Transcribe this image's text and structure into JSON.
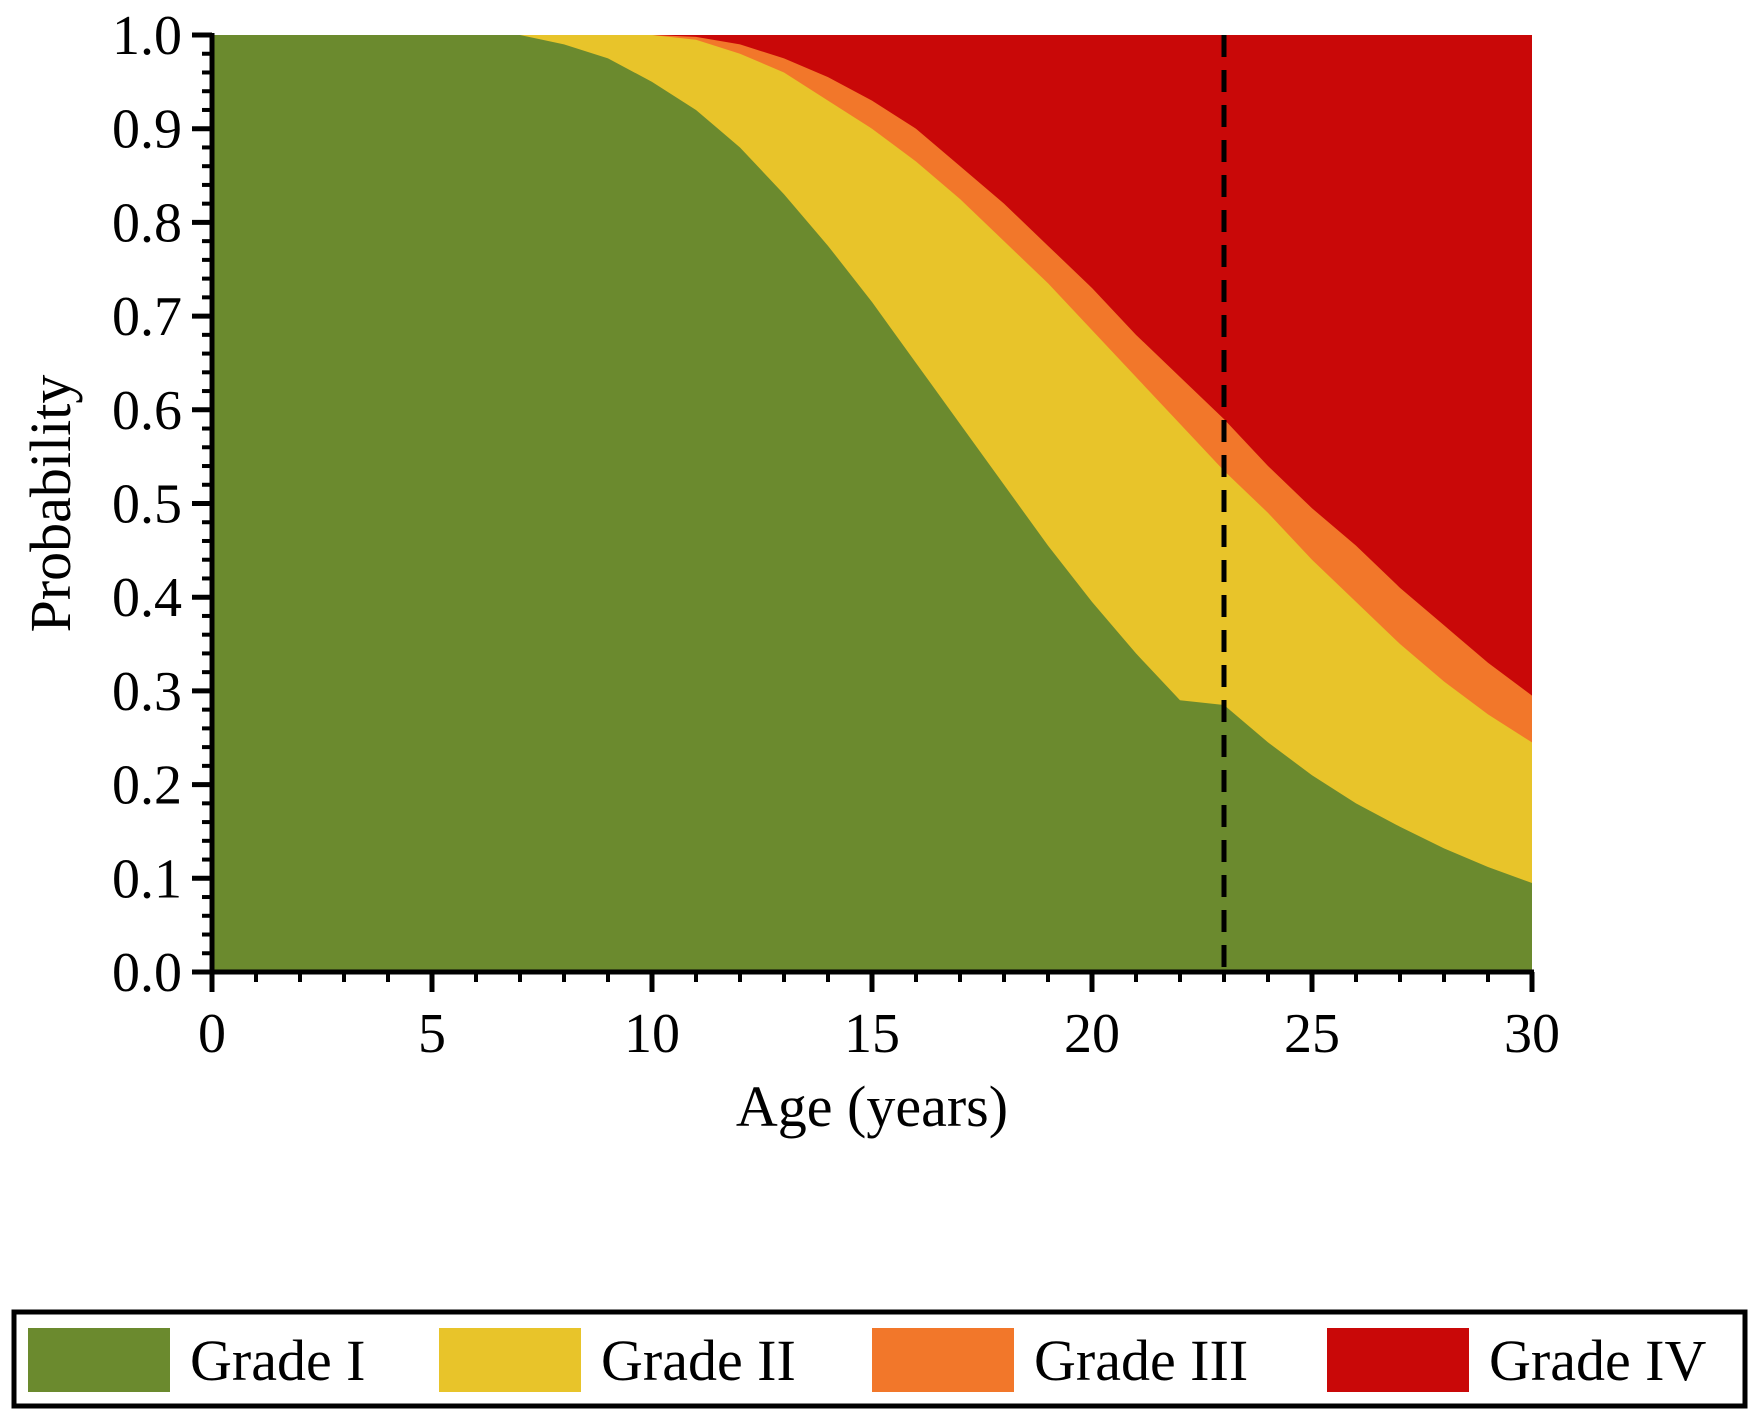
{
  "chart_data": {
    "type": "area",
    "stacked": true,
    "title": "",
    "xlabel": "Age (years)",
    "ylabel": "Probability",
    "xlim": [
      0,
      30
    ],
    "ylim": [
      0,
      1
    ],
    "x_ticks": [
      "0",
      "5",
      "10",
      "15",
      "20",
      "25",
      "30"
    ],
    "y_ticks": [
      "0.0",
      "0.1",
      "0.2",
      "0.3",
      "0.4",
      "0.5",
      "0.6",
      "0.7",
      "0.8",
      "0.9",
      "1.0"
    ],
    "grid": false,
    "legend_position": "bottom",
    "reference_line": {
      "x": 23,
      "style": "dashed",
      "color": "#000000"
    },
    "x": [
      0,
      5,
      7,
      8,
      9,
      10,
      11,
      12,
      13,
      14,
      15,
      16,
      17,
      18,
      19,
      20,
      21,
      22,
      23,
      24,
      25,
      26,
      27,
      28,
      29,
      30
    ],
    "series": [
      {
        "name": "Grade I",
        "color": "#6b8a2e",
        "cumulative": [
          1.0,
          1.0,
          1.0,
          0.99,
          0.975,
          0.95,
          0.92,
          0.88,
          0.83,
          0.775,
          0.715,
          0.65,
          0.585,
          0.52,
          0.455,
          0.395,
          0.34,
          0.29,
          0.285,
          0.245,
          0.21,
          0.18,
          0.155,
          0.132,
          0.112,
          0.095
        ]
      },
      {
        "name": "Grade II",
        "color": "#e8c42a",
        "cumulative": [
          1.0,
          1.0,
          1.0,
          1.0,
          1.0,
          1.0,
          0.995,
          0.98,
          0.96,
          0.93,
          0.9,
          0.865,
          0.825,
          0.78,
          0.735,
          0.685,
          0.635,
          0.585,
          0.535,
          0.49,
          0.44,
          0.395,
          0.35,
          0.31,
          0.275,
          0.245
        ]
      },
      {
        "name": "Grade III",
        "color": "#f2772a",
        "cumulative": [
          1.0,
          1.0,
          1.0,
          1.0,
          1.0,
          1.0,
          0.998,
          0.99,
          0.975,
          0.955,
          0.93,
          0.9,
          0.86,
          0.82,
          0.775,
          0.73,
          0.68,
          0.635,
          0.59,
          0.54,
          0.495,
          0.455,
          0.41,
          0.37,
          0.33,
          0.295
        ]
      },
      {
        "name": "Grade IV",
        "color": "#c90808",
        "cumulative": [
          1.0,
          1.0,
          1.0,
          1.0,
          1.0,
          1.0,
          1.0,
          1.0,
          1.0,
          1.0,
          1.0,
          1.0,
          1.0,
          1.0,
          1.0,
          1.0,
          1.0,
          1.0,
          1.0,
          1.0,
          1.0,
          1.0,
          1.0,
          1.0,
          1.0,
          1.0
        ]
      }
    ]
  }
}
